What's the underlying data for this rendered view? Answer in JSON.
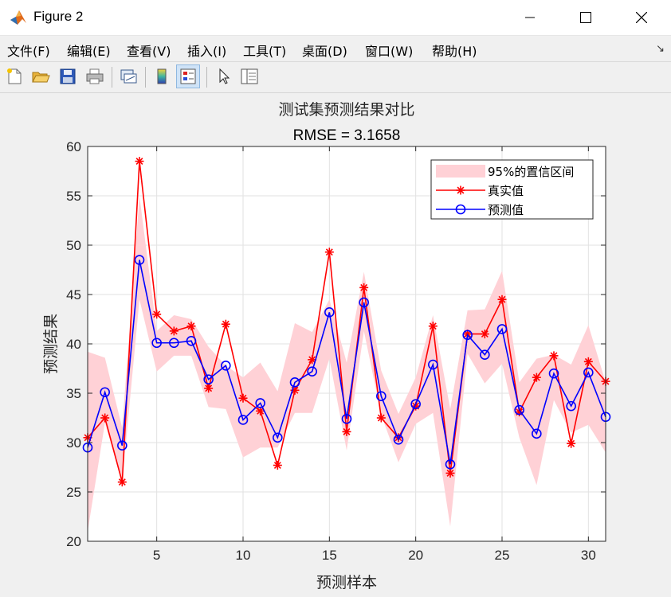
{
  "window": {
    "title": "Figure 2",
    "minimize_label": "—",
    "maximize_label": "☐",
    "close_label": "✕"
  },
  "menu": {
    "items": [
      {
        "label": "文件(F)"
      },
      {
        "label": "编辑(E)"
      },
      {
        "label": "查看(V)"
      },
      {
        "label": "插入(I)"
      },
      {
        "label": "工具(T)"
      },
      {
        "label": "桌面(D)"
      },
      {
        "label": "窗口(W)"
      },
      {
        "label": "帮助(H)"
      }
    ],
    "dock_arrow": "↘"
  },
  "toolbar": {
    "icons": [
      "new-figure-icon",
      "open-file-icon",
      "save-icon",
      "print-icon",
      "link-plot-icon",
      "colorbar-icon",
      "legend-icon",
      "pointer-icon",
      "property-inspector-icon"
    ]
  },
  "colors": {
    "true_series": "#ff0000",
    "pred_series": "#0000ff",
    "ci_band": "#ffd1d6"
  },
  "chart_data": {
    "type": "line",
    "title": "测试集预测结果对比",
    "subtitle": "RMSE = 3.1658",
    "xlabel": "预测样本",
    "ylabel": "预测结果",
    "xlim": [
      1,
      31
    ],
    "ylim": [
      20,
      60
    ],
    "xticks": [
      5,
      10,
      15,
      20,
      25,
      30
    ],
    "yticks": [
      20,
      25,
      30,
      35,
      40,
      45,
      50,
      55,
      60
    ],
    "grid": true,
    "legend_position": "top-right",
    "x": [
      1,
      2,
      3,
      4,
      5,
      6,
      7,
      8,
      9,
      10,
      11,
      12,
      13,
      14,
      15,
      16,
      17,
      18,
      19,
      20,
      21,
      22,
      23,
      24,
      25,
      26,
      27,
      28,
      29,
      30,
      31
    ],
    "band": {
      "name": "95%的置信区间",
      "lower": [
        21.0,
        32.0,
        26.0,
        44.5,
        37.2,
        38.8,
        38.8,
        33.6,
        33.4,
        28.5,
        29.5,
        29.5,
        33.0,
        33.0,
        38.5,
        29.2,
        41.3,
        32.8,
        28.0,
        31.9,
        33.0,
        21.5,
        39.0,
        36.0,
        38.0,
        30.5,
        25.7,
        34.3,
        31.0,
        31.8,
        29.0
      ],
      "upper": [
        39.2,
        38.6,
        31.5,
        55.0,
        41.3,
        42.9,
        42.5,
        39.7,
        37.8,
        36.6,
        38.1,
        35.2,
        42.1,
        41.2,
        44.5,
        38.1,
        47.3,
        37.3,
        32.9,
        36.6,
        42.9,
        33.4,
        43.4,
        43.5,
        47.4,
        36.1,
        38.5,
        38.9,
        37.9,
        41.9,
        36.1
      ]
    },
    "series": [
      {
        "name": "真实值",
        "marker": "asterisk",
        "values": [
          30.5,
          32.5,
          26.0,
          58.5,
          43.0,
          41.3,
          41.8,
          35.5,
          42.0,
          34.5,
          33.2,
          27.7,
          35.3,
          38.4,
          49.3,
          31.1,
          45.7,
          32.5,
          30.5,
          33.7,
          41.8,
          26.9,
          41.0,
          41.0,
          44.5,
          33.1,
          36.6,
          38.8,
          29.9,
          38.2,
          36.2
        ]
      },
      {
        "name": "预测值",
        "marker": "circle",
        "values": [
          29.5,
          35.1,
          29.7,
          48.5,
          40.1,
          40.1,
          40.3,
          36.4,
          37.8,
          32.3,
          34.0,
          30.5,
          36.1,
          37.2,
          43.2,
          32.4,
          44.2,
          34.7,
          30.3,
          33.9,
          37.9,
          27.8,
          40.9,
          38.9,
          41.5,
          33.3,
          30.9,
          37.0,
          33.7,
          37.1,
          32.6
        ]
      }
    ]
  }
}
